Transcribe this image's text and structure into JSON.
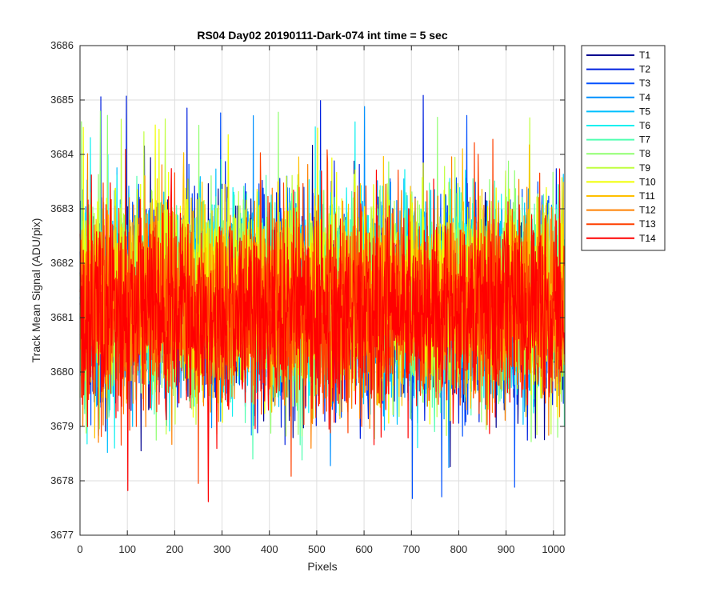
{
  "chart_data": {
    "type": "line",
    "title": "RS04 Day02 20190111-Dark-074 int time = 5 sec",
    "xlabel": "Pixels",
    "ylabel": "Track Mean Signal (ADU/pix)",
    "xlim": [
      0,
      1024
    ],
    "ylim": [
      3677,
      3686
    ],
    "xticks": [
      0,
      100,
      200,
      300,
      400,
      500,
      600,
      700,
      800,
      900,
      1000
    ],
    "yticks": [
      3677,
      3678,
      3679,
      3680,
      3681,
      3682,
      3683,
      3684,
      3685,
      3686
    ],
    "grid": true,
    "legend_position": "outside-top-right",
    "n_points": 1024,
    "series": [
      {
        "name": "T1",
        "color": "#00008F",
        "mean": 3681.3,
        "min": 3678.1,
        "max": 3684.2
      },
      {
        "name": "T2",
        "color": "#0020DF",
        "mean": 3681.2,
        "min": 3677.4,
        "max": 3685.1
      },
      {
        "name": "T3",
        "color": "#0050FF",
        "mean": 3681.3,
        "min": 3677.6,
        "max": 3684.9
      },
      {
        "name": "T4",
        "color": "#0090FF",
        "mean": 3681.3,
        "min": 3678.1,
        "max": 3685.0
      },
      {
        "name": "T5",
        "color": "#00C0FF",
        "mean": 3681.4,
        "min": 3678.4,
        "max": 3685.8
      },
      {
        "name": "T6",
        "color": "#10F0F0",
        "mean": 3681.4,
        "min": 3678.4,
        "max": 3684.6
      },
      {
        "name": "T7",
        "color": "#50FFB0",
        "mean": 3681.4,
        "min": 3678.3,
        "max": 3685.2
      },
      {
        "name": "T8",
        "color": "#90FF70",
        "mean": 3681.4,
        "min": 3678.6,
        "max": 3684.8
      },
      {
        "name": "T9",
        "color": "#C0FF40",
        "mean": 3681.5,
        "min": 3678.8,
        "max": 3684.7
      },
      {
        "name": "T10",
        "color": "#F0FF00",
        "mean": 3681.5,
        "min": 3678.9,
        "max": 3684.6
      },
      {
        "name": "T11",
        "color": "#FFC000",
        "mean": 3681.3,
        "min": 3677.3,
        "max": 3684.2
      },
      {
        "name": "T12",
        "color": "#FF8000",
        "mean": 3681.2,
        "min": 3678.5,
        "max": 3684.1
      },
      {
        "name": "T13",
        "color": "#FF4000",
        "mean": 3681.1,
        "min": 3677.8,
        "max": 3684.3
      },
      {
        "name": "T14",
        "color": "#FF0000",
        "mean": 3681.1,
        "min": 3677.6,
        "max": 3683.8
      }
    ]
  }
}
